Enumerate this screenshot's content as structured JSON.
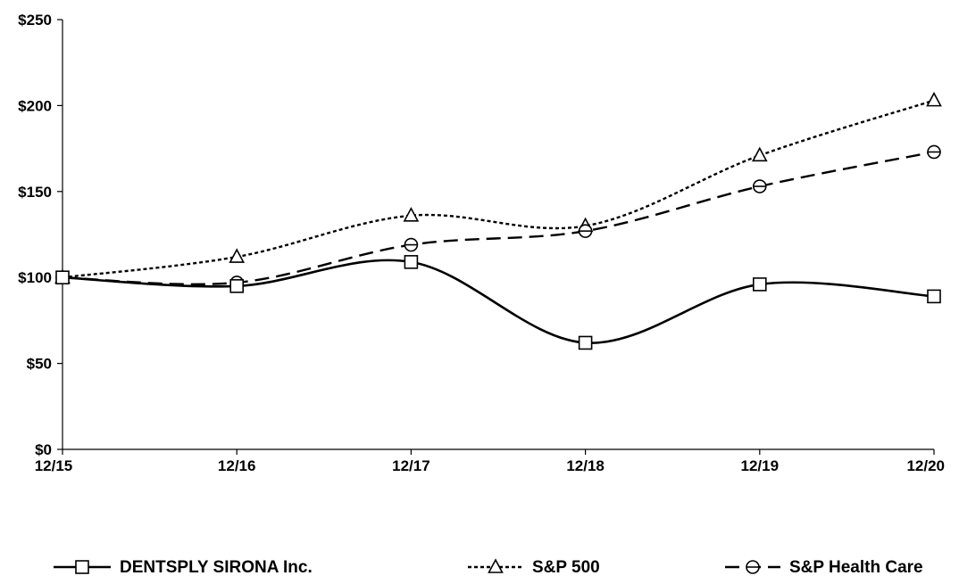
{
  "chart_data": {
    "type": "line",
    "title": "",
    "xlabel": "",
    "ylabel": "",
    "categories": [
      "12/15",
      "12/16",
      "12/17",
      "12/18",
      "12/19",
      "12/20"
    ],
    "ylim": [
      0,
      250
    ],
    "yticks": [
      0,
      50,
      100,
      150,
      200,
      250
    ],
    "ytick_labels": [
      "$0",
      "$50",
      "$100",
      "$150",
      "$200",
      "$250"
    ],
    "grid": false,
    "legend_position": "bottom",
    "series": [
      {
        "name": "DENTSPLY SIRONA Inc.",
        "values": [
          100,
          95,
          109,
          62,
          96,
          89
        ],
        "line_style": "solid",
        "marker": "square",
        "color": "#000000"
      },
      {
        "name": "S&P 500",
        "values": [
          100,
          112,
          136,
          130,
          171,
          203
        ],
        "line_style": "dotted",
        "marker": "triangle",
        "color": "#000000"
      },
      {
        "name": "S&P Health Care",
        "values": [
          100,
          97,
          119,
          127,
          153,
          173
        ],
        "line_style": "dashed",
        "marker": "circle",
        "color": "#000000"
      }
    ]
  }
}
